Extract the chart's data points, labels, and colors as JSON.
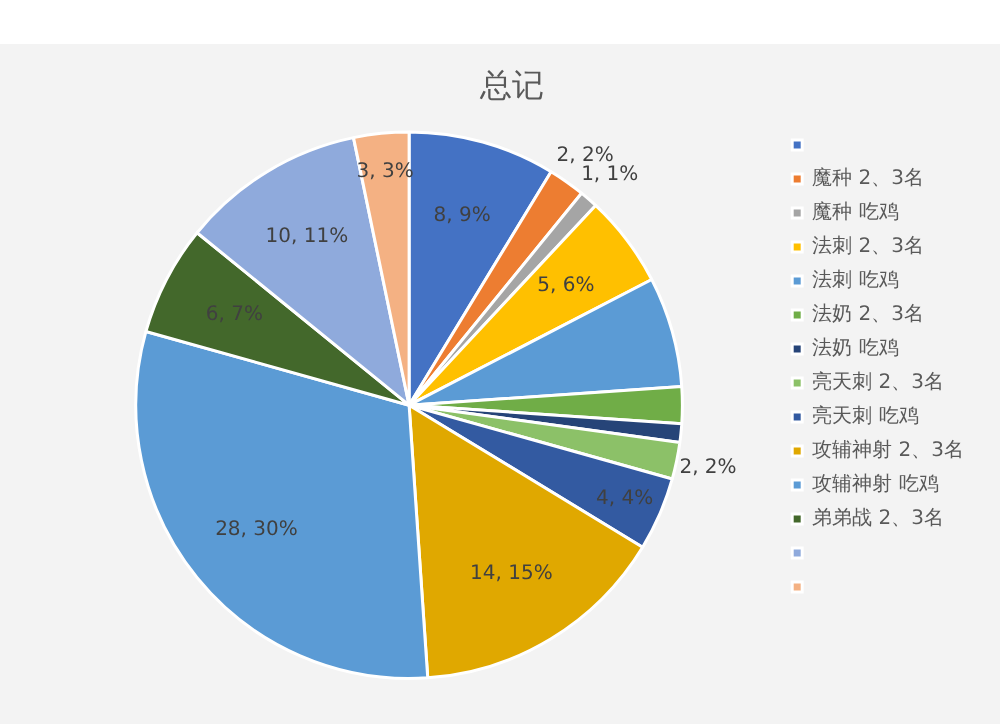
{
  "chart_data": {
    "type": "pie",
    "title": "总记",
    "categories": [
      null,
      "魔种 2、3名",
      "魔种 吃鸡",
      "法刺 2、3名",
      "法刺 吃鸡",
      "法奶 2、3名",
      "法奶 吃鸡",
      "亮天刺 2、3名",
      "亮天刺 吃鸡",
      "攻辅神射 2、3名",
      "攻辅神射 吃鸡",
      "弟弟战 2、3名",
      null,
      null
    ],
    "values": [
      8,
      2,
      1,
      5,
      6,
      2,
      1,
      2,
      4,
      14,
      28,
      6,
      10,
      3
    ],
    "colors": [
      "#4472c4",
      "#ed7d31",
      "#a5a5a5",
      "#ffc000",
      "#5b9bd5",
      "#70ad47",
      "#264478",
      "#8cc168",
      "#335aa1",
      "#e0a800",
      "#5b9bd5",
      "#43682b",
      "#8faadc",
      "#f4b183"
    ],
    "value_labels": [
      "8, 9%",
      "2, 2%",
      "1, 1%",
      "5, 6%",
      null,
      null,
      null,
      "2, 2%",
      "4, 4%",
      "14, 15%",
      "28, 30%",
      "6, 7%",
      "10, 11%",
      "3, 3%"
    ],
    "legend": "right"
  }
}
